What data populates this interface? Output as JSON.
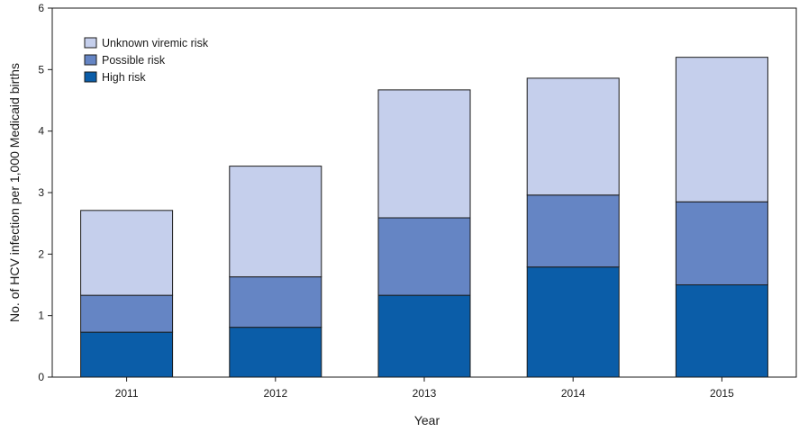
{
  "chart_data": {
    "type": "bar",
    "stacked": true,
    "categories": [
      "2011",
      "2012",
      "2013",
      "2014",
      "2015"
    ],
    "series": [
      {
        "name": "High risk",
        "color": "#0b5da8",
        "values": [
          0.73,
          0.81,
          1.33,
          1.79,
          1.5
        ]
      },
      {
        "name": "Possible risk",
        "color": "#6585c4",
        "values": [
          0.6,
          0.82,
          1.26,
          1.17,
          1.35
        ]
      },
      {
        "name": "Unknown viremic risk",
        "color": "#c5cfec",
        "values": [
          1.38,
          1.8,
          2.08,
          1.9,
          2.35
        ]
      }
    ],
    "legend_order": [
      "Unknown viremic risk",
      "Possible risk",
      "High risk"
    ],
    "legend_position": "top-left",
    "title": "",
    "xlabel": "Year",
    "ylabel": "No. of HCV infection per 1,000 Medicaid births",
    "ylim": [
      0,
      6
    ],
    "yticks": [
      "0",
      "1",
      "2",
      "3",
      "4",
      "5",
      "6"
    ],
    "grid": false
  }
}
